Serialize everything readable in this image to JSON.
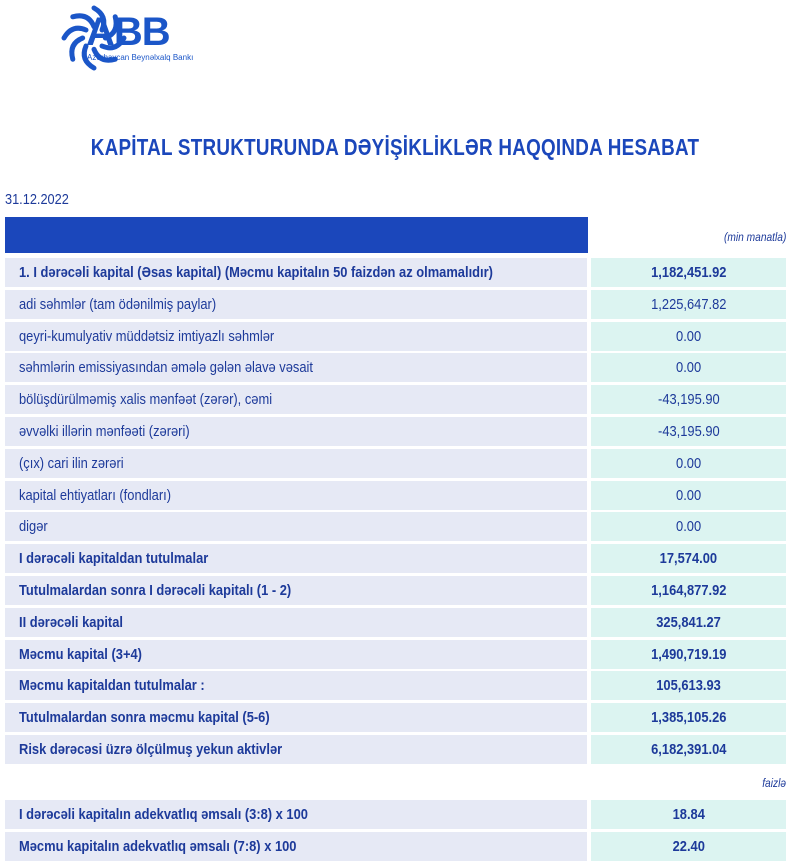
{
  "logo": {
    "name": "ABB",
    "subtitle": "Azərbaycan Beynəlxalq Bankı"
  },
  "title": "KAPİTAL STRUKTURUNDA DƏYİŞİKLİKLƏR HAQQINDA HESABAT",
  "date": "31.12.2022",
  "unit_top": "(min manatla)",
  "rows": [
    {
      "label": "1. I dərəcəli kapital (Əsas kapital) (Məcmu kapitalın 50 faizdən  az olmamalıdır)",
      "value": "1,182,451.92",
      "bold": true
    },
    {
      "label": "adi səhmlər (tam ödənilmiş paylar)",
      "value": "1,225,647.82",
      "bold": false
    },
    {
      "label": "qeyri-kumulyativ müddətsiz imtiyazlı səhmlər",
      "value": "0.00",
      "bold": false
    },
    {
      "label": "səhmlərin emissiyasından əmələ gələn  əlavə vəsait",
      "value": "0.00",
      "bold": false
    },
    {
      "label": "bölüşdürülməmiş xalis mənfəət (zərər), cəmi",
      "value": "-43,195.90",
      "bold": false
    },
    {
      "label": "əvvəlki illərin mənfəəti (zərəri)",
      "value": "-43,195.90",
      "bold": false
    },
    {
      "label": "(çıx) cari ilin zərəri",
      "value": "0.00",
      "bold": false
    },
    {
      "label": "kapital ehtiyatları (fondları)",
      "value": "0.00",
      "bold": false
    },
    {
      "label": "digər",
      "value": "0.00",
      "bold": false
    },
    {
      "label": "I dərəcəli kapitaldan  tutulmalar",
      "value": "17,574.00",
      "bold": true
    },
    {
      "label": "Tutulmalardan  sonra I dərəcəli kapitalı (1 - 2)",
      "value": "1,164,877.92",
      "bold": true
    },
    {
      "label": "II dərəcəli  kapital",
      "value": "325,841.27",
      "bold": true
    },
    {
      "label": "Məcmu kapital (3+4)",
      "value": "1,490,719.19",
      "bold": true
    },
    {
      "label": "Məcmu kapitaldan tutulmalar :",
      "value": "105,613.93",
      "bold": true
    },
    {
      "label": "Tutulmalardan sonra məcmu kapital (5-6)",
      "value": "1,385,105.26",
      "bold": true
    },
    {
      "label": "Risk dərəcəsi üzrə ölçülmuş  yekun aktivlər",
      "value": "6,182,391.04",
      "bold": true
    }
  ],
  "unit_bottom": "faizlə",
  "ratios": [
    {
      "label": "I dərəcəli  kapitalın  adekvatlıq əmsalı (3:8) x 100",
      "value": "18.84",
      "bold": true
    },
    {
      "label": "Məcmu kapitalın  adekvatlıq  əmsalı (7:8) x 100",
      "value": "22.40",
      "bold": true
    }
  ],
  "colors": {
    "accent": "#1b47bb",
    "text": "#1d3a9a",
    "label_bg": "#e6e9f5",
    "value_bg": "#dcf4f1"
  }
}
